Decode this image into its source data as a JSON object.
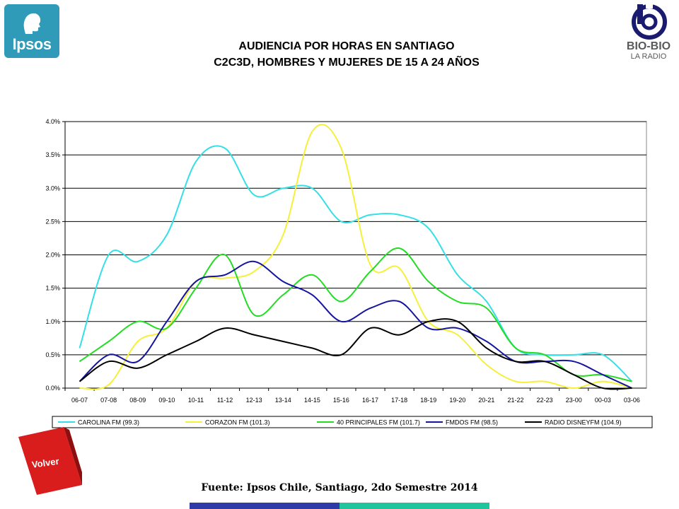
{
  "header": {
    "title_line1": "AUDIENCIA POR HORAS EN SANTIAGO",
    "title_line2": "C2C3D, HOMBRES Y MUJERES DE 15 A 24 AÑOS"
  },
  "logos": {
    "ipsos": "Ipsos",
    "radio_name": "BIO-BIO",
    "radio_sub": "LA RADIO",
    "ipsos_color": "#2f9bb8"
  },
  "footer": {
    "source": "Fuente: Ipsos Chile, Santiago, 2do Semestre 2014",
    "back_button": "Volver",
    "back_button_color": "#d91c1c"
  },
  "chart_data": {
    "type": "line",
    "categories": [
      "06-07",
      "07-08",
      "08-09",
      "09-10",
      "10-11",
      "11-12",
      "12-13",
      "13-14",
      "14-15",
      "15-16",
      "16-17",
      "17-18",
      "18-19",
      "19-20",
      "20-21",
      "21-22",
      "22-23",
      "23-00",
      "00-03",
      "03-06"
    ],
    "ylim": [
      0,
      4.0
    ],
    "yticks": [
      "0.0%",
      "0.5%",
      "1.0%",
      "1.5%",
      "2.0%",
      "2.5%",
      "3.0%",
      "3.5%",
      "4.0%"
    ],
    "grid": true,
    "legend_position": "bottom",
    "series": [
      {
        "name": "CAROLINA FM (99.3)",
        "color": "#33e0e6",
        "values": [
          0.6,
          2.0,
          1.9,
          2.3,
          3.4,
          3.6,
          2.9,
          3.0,
          3.0,
          2.5,
          2.6,
          2.6,
          2.4,
          1.7,
          1.3,
          0.6,
          0.5,
          0.5,
          0.5,
          0.1
        ]
      },
      {
        "name": "CORAZON FM (101.3)",
        "color": "#f5f03a",
        "values": [
          0.0,
          0.05,
          0.7,
          0.9,
          1.6,
          1.65,
          1.75,
          2.3,
          3.85,
          3.6,
          1.85,
          1.8,
          1.0,
          0.8,
          0.35,
          0.1,
          0.1,
          0.0,
          0.1,
          0.0
        ]
      },
      {
        "name": "40 PRINCIPALES FM (101.7)",
        "color": "#22dd22",
        "values": [
          0.4,
          0.7,
          1.0,
          0.9,
          1.5,
          2.0,
          1.1,
          1.4,
          1.7,
          1.3,
          1.75,
          2.1,
          1.6,
          1.3,
          1.2,
          0.6,
          0.5,
          0.2,
          0.2,
          0.1
        ]
      },
      {
        "name": "FMDOS FM (98.5)",
        "color": "#1414a0",
        "values": [
          0.1,
          0.5,
          0.4,
          1.0,
          1.6,
          1.7,
          1.9,
          1.6,
          1.4,
          1.0,
          1.2,
          1.3,
          0.9,
          0.9,
          0.7,
          0.4,
          0.4,
          0.4,
          0.2,
          0.0
        ]
      },
      {
        "name": "RADIO DISNEYFM (104.9)",
        "color": "#000000",
        "values": [
          0.1,
          0.4,
          0.3,
          0.5,
          0.7,
          0.9,
          0.8,
          0.7,
          0.6,
          0.5,
          0.9,
          0.8,
          1.0,
          1.0,
          0.6,
          0.4,
          0.4,
          0.2,
          0.0,
          0.0
        ]
      }
    ]
  }
}
